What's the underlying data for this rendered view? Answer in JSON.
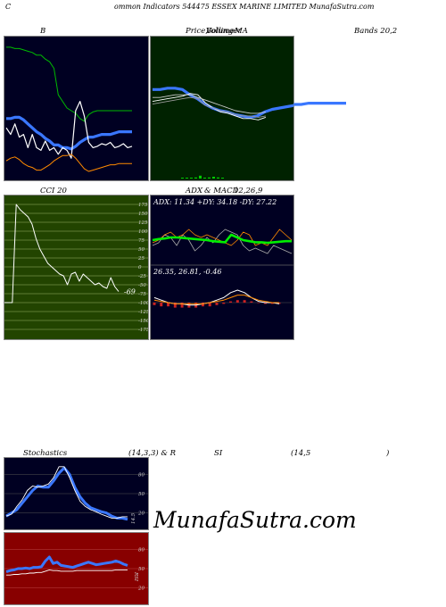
{
  "header": {
    "c": "C",
    "title": "ommon  Indicators 544475 ESSEX  MARINE LIMITED MunafaSutra.com"
  },
  "labels": {
    "b": "B",
    "price_a": "Price,",
    "price_b": "Volume",
    "price_c": "Bollinger",
    "price_d": "MA",
    "bands": "Bands 20,2",
    "cci": "CCI 20",
    "adx_a": "ADX",
    "adx_b": "& MACD",
    "adx_c": "12,26,9",
    "stoch_a": "Stochastics",
    "stoch_b": "(14,3,3) & R",
    "stoch_c": "SI",
    "stoch_d": "(14,5",
    "stoch_e": ")"
  },
  "colors": {
    "bg_navy": "#000022",
    "bg_green": "#002200",
    "bg_cci": "#224400",
    "bg_red": "#880000",
    "blue": "#3a77ff",
    "green": "#00cc00",
    "orange": "#ff8a00",
    "white": "#ffffff"
  },
  "watermark": "MunafaSutra.com",
  "chart_data": [
    {
      "type": "line",
      "panel": "bollinger",
      "series": [
        {
          "color": "#00bb00",
          "values": [
            0.96,
            0.96,
            0.95,
            0.95,
            0.94,
            0.93,
            0.92,
            0.9,
            0.9,
            0.87,
            0.85,
            0.8,
            0.6,
            0.55,
            0.5,
            0.48,
            0.46,
            0.42,
            0.4,
            0.45,
            0.47,
            0.48,
            0.48,
            0.48,
            0.48,
            0.48,
            0.48,
            0.48,
            0.48,
            0.48
          ]
        },
        {
          "color": "#3a77ff",
          "values": [
            0.42,
            0.42,
            0.43,
            0.43,
            0.41,
            0.38,
            0.35,
            0.32,
            0.3,
            0.27,
            0.25,
            0.22,
            0.22,
            0.2,
            0.2,
            0.19,
            0.21,
            0.24,
            0.26,
            0.28,
            0.28,
            0.29,
            0.3,
            0.3,
            0.3,
            0.31,
            0.32,
            0.32,
            0.32,
            0.32
          ]
        },
        {
          "color": "#ffffff",
          "values": [
            0.35,
            0.3,
            0.38,
            0.28,
            0.3,
            0.2,
            0.3,
            0.2,
            0.18,
            0.25,
            0.18,
            0.2,
            0.15,
            0.2,
            0.18,
            0.12,
            0.48,
            0.55,
            0.44,
            0.24,
            0.2,
            0.21,
            0.23,
            0.22,
            0.24,
            0.2,
            0.21,
            0.23,
            0.2,
            0.21
          ]
        },
        {
          "color": "#ff8a00",
          "values": [
            0.1,
            0.12,
            0.13,
            0.11,
            0.08,
            0.06,
            0.05,
            0.03,
            0.03,
            0.05,
            0.07,
            0.1,
            0.12,
            0.14,
            0.14,
            0.15,
            0.12,
            0.08,
            0.04,
            0.02,
            0.03,
            0.04,
            0.05,
            0.06,
            0.07,
            0.07,
            0.08,
            0.08,
            0.08,
            0.08
          ]
        }
      ]
    },
    {
      "type": "line",
      "panel": "price",
      "series": [
        {
          "color": "#3a77ff",
          "values": [
            0.64,
            0.64,
            0.65,
            0.65,
            0.64,
            0.6,
            0.57,
            0.53,
            0.5,
            0.48,
            0.47,
            0.45,
            0.44,
            0.43,
            0.44,
            0.47,
            0.49,
            0.5,
            0.51,
            0.52,
            0.52,
            0.53,
            0.53,
            0.53,
            0.53,
            0.53,
            0.53
          ]
        },
        {
          "color": "#ffffff",
          "values": [
            0.55,
            0.56,
            0.57,
            0.58,
            0.59,
            0.61,
            0.6,
            0.54,
            0.5,
            0.47,
            0.46,
            0.44,
            0.42,
            0.42,
            0.41,
            0.43
          ]
        },
        {
          "color": "#cccccc",
          "values": [
            0.58,
            0.58,
            0.59,
            0.6,
            0.6,
            0.6,
            0.58,
            0.56,
            0.54,
            0.52,
            0.5,
            0.48,
            0.47,
            0.46,
            0.46,
            0.47
          ]
        },
        {
          "color": "#999999",
          "values": [
            0.53,
            0.54,
            0.55,
            0.56,
            0.57,
            0.58,
            0.57,
            0.52,
            0.5,
            0.48,
            0.47,
            0.45,
            0.44,
            0.44,
            0.43,
            0.44
          ]
        }
      ],
      "volume": [
        0.02,
        0.01,
        0.02,
        0.03,
        0.08,
        0.02,
        0.03,
        0.05,
        0.03,
        0.02
      ]
    },
    {
      "type": "line",
      "panel": "cci",
      "ticks": [
        "175",
        "150",
        "125",
        "100",
        "75",
        "50",
        "25",
        "0",
        "-25",
        "-50",
        "-75",
        "-100",
        "-125",
        "-150",
        "-175"
      ],
      "last_label": "-69",
      "series": [
        {
          "color": "#ffffff",
          "values": [
            -100,
            -100,
            -100,
            175,
            160,
            150,
            140,
            120,
            80,
            50,
            30,
            10,
            0,
            -10,
            -20,
            -25,
            -50,
            -20,
            -15,
            -40,
            -20,
            -30,
            -40,
            -50,
            -45,
            -55,
            -60,
            -30,
            -55,
            -69
          ]
        }
      ]
    },
    {
      "type": "line",
      "panel": "adx",
      "text": "ADX: 11.34  +DY: 34.18  -DY: 27.22",
      "series": [
        {
          "color": "#00ee00",
          "values": [
            0.4,
            0.42,
            0.43,
            0.45,
            0.45,
            0.44,
            0.43,
            0.42,
            0.41,
            0.4,
            0.38,
            0.37,
            0.36,
            0.5,
            0.45,
            0.4,
            0.38,
            0.36,
            0.36,
            0.35,
            0.36,
            0.37,
            0.38,
            0.38
          ]
        },
        {
          "color": "#ff8a00",
          "values": [
            0.35,
            0.4,
            0.5,
            0.55,
            0.45,
            0.5,
            0.6,
            0.5,
            0.45,
            0.5,
            0.45,
            0.4,
            0.35,
            0.3,
            0.4,
            0.55,
            0.5,
            0.3,
            0.35,
            0.3,
            0.45,
            0.6,
            0.5,
            0.4
          ]
        },
        {
          "color": "#aaaaaa",
          "values": [
            0.3,
            0.35,
            0.5,
            0.45,
            0.3,
            0.5,
            0.4,
            0.2,
            0.3,
            0.45,
            0.35,
            0.5,
            0.6,
            0.55,
            0.5,
            0.3,
            0.2,
            0.25,
            0.2,
            0.15,
            0.3,
            0.25,
            0.2,
            0.15
          ]
        }
      ]
    },
    {
      "type": "bar",
      "panel": "macd",
      "text": "26.35,  26.81,  -0.46",
      "series": [
        {
          "color": "#ffffff",
          "values": [
            0.6,
            0.58,
            0.56,
            0.55,
            0.55,
            0.54,
            0.54,
            0.55,
            0.56,
            0.58,
            0.6,
            0.64,
            0.66,
            0.64,
            0.6,
            0.57,
            0.56,
            0.56,
            0.55
          ]
        },
        {
          "color": "#ff8a00",
          "values": [
            0.58,
            0.57,
            0.56,
            0.55,
            0.55,
            0.55,
            0.55,
            0.55,
            0.56,
            0.57,
            0.58,
            0.6,
            0.62,
            0.62,
            0.6,
            0.58,
            0.57,
            0.56,
            0.56
          ]
        }
      ],
      "histogram": [
        -0.02,
        -0.03,
        -0.03,
        -0.04,
        -0.04,
        -0.04,
        -0.04,
        -0.03,
        -0.03,
        -0.02,
        -0.01,
        0.01,
        0.02,
        0.02,
        0.01,
        0.0,
        -0.01,
        -0.01,
        -0.01
      ]
    },
    {
      "type": "line",
      "panel": "stochastics",
      "ticks": [
        "80",
        "50",
        "20"
      ],
      "last_label": "14.5",
      "ylim": [
        0,
        100
      ],
      "series": [
        {
          "color": "#3a77ff",
          "values": [
            15,
            20,
            25,
            35,
            45,
            55,
            62,
            60,
            60,
            70,
            82,
            90,
            80,
            60,
            45,
            35,
            28,
            25,
            22,
            20,
            15,
            12,
            12,
            10
          ]
        },
        {
          "color": "#ffffff",
          "values": [
            15,
            18,
            30,
            40,
            55,
            62,
            60,
            62,
            65,
            75,
            92,
            92,
            75,
            55,
            38,
            30,
            25,
            22,
            18,
            15,
            12,
            12,
            14,
            14
          ]
        }
      ]
    },
    {
      "type": "line",
      "panel": "rsi",
      "ticks": [
        "80",
        "50",
        "20"
      ],
      "last_label": "RSI",
      "ylim": [
        0,
        100
      ],
      "series": [
        {
          "color": "#3a77ff",
          "values": [
            45,
            47,
            48,
            50,
            50,
            51,
            50,
            52,
            52,
            53,
            62,
            68,
            58,
            60,
            55,
            54,
            53,
            52,
            54,
            56,
            58,
            60,
            58,
            56,
            57,
            58,
            59,
            60,
            62,
            60,
            57,
            55
          ]
        },
        {
          "color": "#ffffff",
          "values": [
            40,
            40,
            41,
            41,
            42,
            42,
            43,
            43,
            44,
            44,
            46,
            48,
            47,
            47,
            46,
            46,
            46,
            46,
            47,
            47,
            47,
            47,
            47,
            47,
            47,
            47,
            47,
            47,
            48,
            48,
            48,
            48
          ]
        }
      ]
    }
  ]
}
